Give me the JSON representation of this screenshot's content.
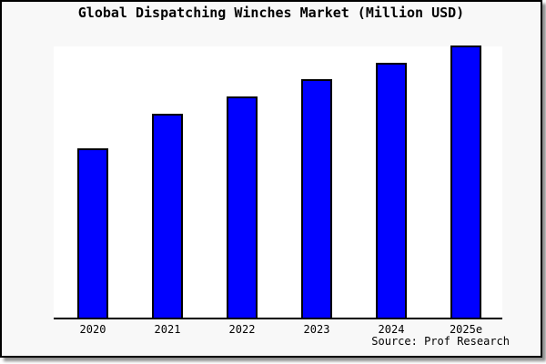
{
  "window": {
    "background": "#f8f8f8",
    "plot_background": "#ffffff",
    "border_color": "#000000",
    "shadow_color": "#8f8f8f"
  },
  "chart_data": {
    "type": "bar",
    "title": "Global Dispatching Winches Market (Million USD)",
    "categories": [
      "2020",
      "2021",
      "2022",
      "2023",
      "2024",
      "2025e"
    ],
    "values": [
      188,
      226,
      245,
      264,
      282,
      301
    ],
    "values_note": "y-axis is unlabeled; values are relative bar heights estimated in pixels from the baseline",
    "ylim": [
      0,
      310
    ],
    "xlabel": "",
    "ylabel": "",
    "gridlines": false,
    "y_axis_visible": false,
    "tick_marks": false,
    "legend_position": "none",
    "bar_color": "#0000ff",
    "bar_border_color": "#000000",
    "source": "Source: Prof Research"
  }
}
